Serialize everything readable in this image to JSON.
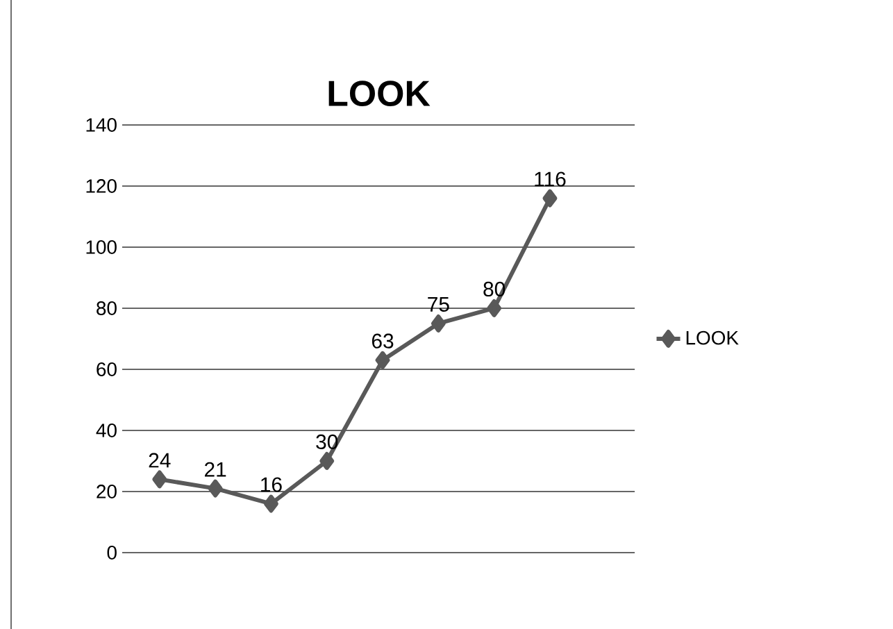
{
  "chart_data": {
    "type": "line",
    "title": "LOOK",
    "categories": [
      null,
      null,
      null,
      null,
      null,
      null,
      null,
      null
    ],
    "series": [
      {
        "name": "LOOK",
        "color": "#595959",
        "values": [
          24,
          21,
          16,
          30,
          63,
          75,
          80,
          116
        ]
      }
    ],
    "ylim": [
      0,
      140
    ],
    "yticks": [
      0,
      20,
      40,
      60,
      80,
      100,
      120,
      140
    ],
    "grid": "y",
    "legend": "right",
    "marker": "diamond",
    "data_labels": true,
    "tick_labels": "y"
  }
}
